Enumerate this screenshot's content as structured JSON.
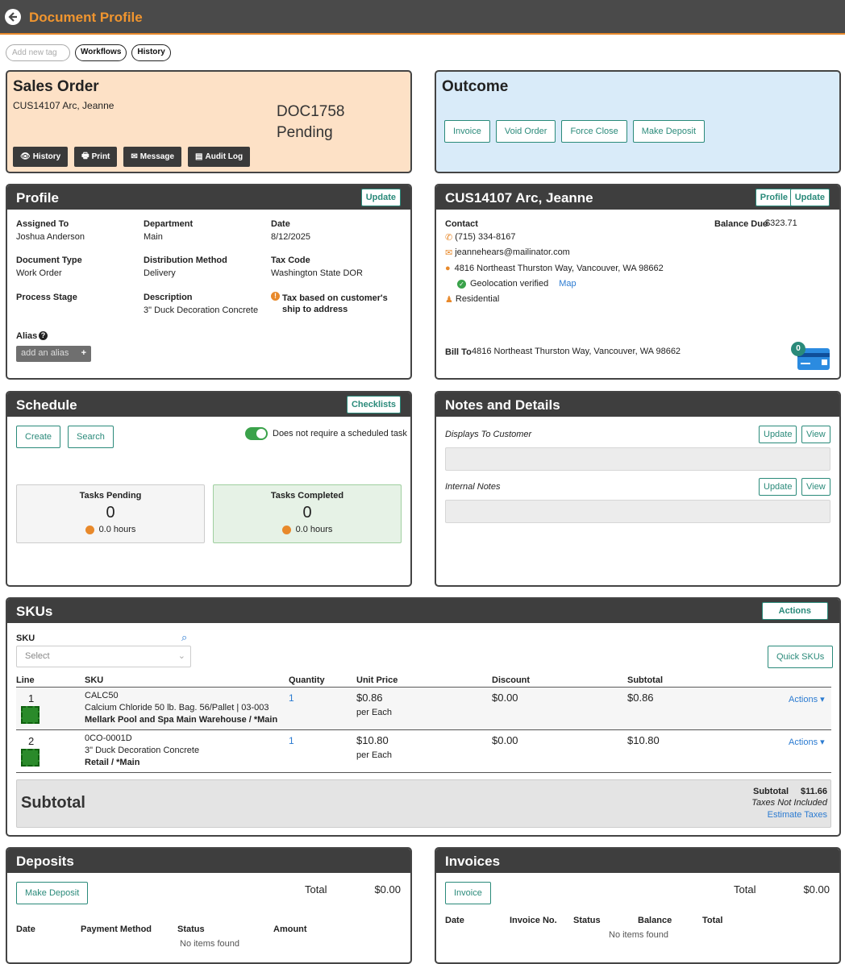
{
  "header": {
    "title": "Document Profile"
  },
  "tags": {
    "placeholder": "Add new tag",
    "workflows": "Workflows",
    "history": "History"
  },
  "sales": {
    "title": "Sales Order",
    "customer": "CUS14107 Arc, Jeanne",
    "doc": "DOC1758",
    "status": "Pending",
    "buttons": {
      "history": "History",
      "print": "Print",
      "message": "Message",
      "audit": "Audit Log"
    }
  },
  "outcome": {
    "title": "Outcome",
    "buttons": {
      "invoice": "Invoice",
      "void": "Void Order",
      "force": "Force Close",
      "deposit": "Make Deposit"
    }
  },
  "profile": {
    "title": "Profile",
    "update": "Update",
    "assigned_label": "Assigned To",
    "assigned": "Joshua Anderson",
    "dept_label": "Department",
    "dept": "Main",
    "date_label": "Date",
    "date": "8/12/2025",
    "doctype_label": "Document Type",
    "doctype": "Work Order",
    "dist_label": "Distribution Method",
    "dist": "Delivery",
    "tax_label": "Tax Code",
    "tax": "Washington State DOR",
    "stage_label": "Process Stage",
    "desc_label": "Description",
    "desc": "3\" Duck Decoration Concrete",
    "taxnote": "Tax based on customer's ship to address",
    "alias_label": "Alias",
    "alias_btn": "add an alias"
  },
  "customer": {
    "title": "CUS14107 Arc, Jeanne",
    "profile_btn": "Profile",
    "update_btn": "Update",
    "contact_label": "Contact",
    "phone": "(715) 334-8167",
    "email": "jeannehears@mailinator.com",
    "address": "4816 Northeast Thurston Way, Vancouver, WA 98662",
    "geo": "Geolocation verified",
    "map": "Map",
    "type": "Residential",
    "balance_label": "Balance Due",
    "balance": "$323.71",
    "billto_label": "Bill To",
    "billto": "4816 Northeast Thurston Way, Vancouver, WA 98662",
    "card_count": "0"
  },
  "schedule": {
    "title": "Schedule",
    "checklists": "Checklists",
    "create": "Create",
    "search": "Search",
    "toggle_label": "Does not require a scheduled task",
    "pending_label": "Tasks Pending",
    "pending": "0",
    "pending_hours": "0.0 hours",
    "completed_label": "Tasks Completed",
    "completed": "0",
    "completed_hours": "0.0 hours"
  },
  "notes": {
    "title": "Notes and Details",
    "customer_label": "Displays To Customer",
    "internal_label": "Internal Notes",
    "update": "Update",
    "view": "View"
  },
  "skus": {
    "title": "SKUs",
    "actions": "Actions",
    "sku_label": "SKU",
    "select_placeholder": "Select",
    "quick": "Quick SKUs",
    "columns": {
      "line": "Line",
      "sku": "SKU",
      "qty": "Quantity",
      "price": "Unit Price",
      "discount": "Discount",
      "subtotal": "Subtotal"
    },
    "rows": [
      {
        "line": "1",
        "code": "CALC50",
        "name": "Calcium Chloride 50 lb. Bag. 56/Pallet | 03-003",
        "location": "Mellark Pool and Spa Main Warehouse / *Main",
        "qty": "1",
        "price": "$0.86",
        "per": "per Each",
        "discount": "$0.00",
        "subtotal": "$0.86",
        "actions": "Actions"
      },
      {
        "line": "2",
        "code": "0CO-0001D",
        "name": "3\" Duck Decoration Concrete",
        "location": "Retail / *Main",
        "qty": "1",
        "price": "$10.80",
        "per": "per Each",
        "discount": "$0.00",
        "subtotal": "$10.80",
        "actions": "Actions"
      }
    ],
    "subtotal_title": "Subtotal",
    "subtotal_label": "Subtotal",
    "subtotal_value": "$11.66",
    "taxes_note": "Taxes Not Included",
    "estimate": "Estimate Taxes"
  },
  "deposits": {
    "title": "Deposits",
    "make": "Make Deposit",
    "total_label": "Total",
    "total": "$0.00",
    "columns": {
      "date": "Date",
      "method": "Payment Method",
      "status": "Status",
      "amount": "Amount"
    },
    "empty": "No items found"
  },
  "invoices": {
    "title": "Invoices",
    "invoice": "Invoice",
    "total_label": "Total",
    "total": "$0.00",
    "columns": {
      "date": "Date",
      "no": "Invoice No.",
      "status": "Status",
      "balance": "Balance",
      "total": "Total"
    },
    "empty": "No items found"
  }
}
